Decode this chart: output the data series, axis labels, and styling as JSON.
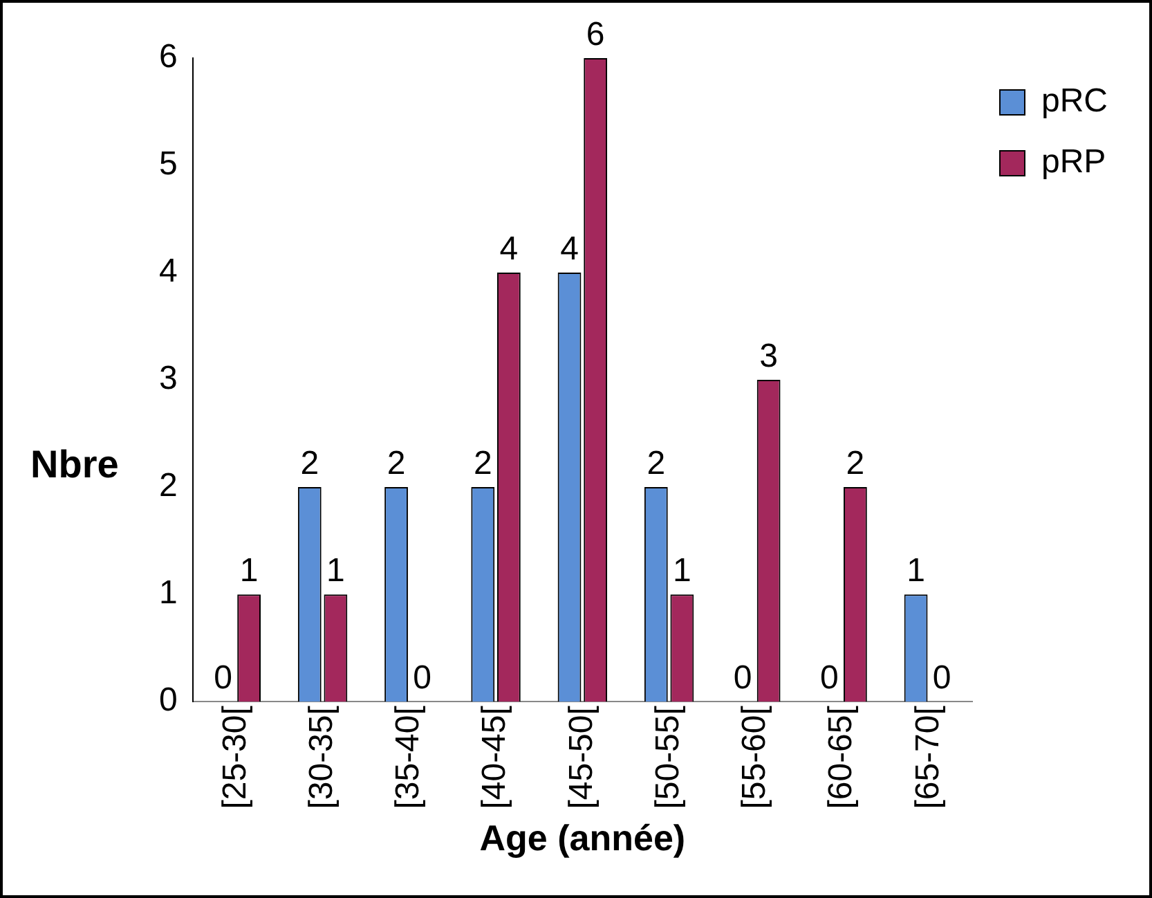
{
  "chart_data": {
    "type": "bar",
    "xlabel": "Age (année)",
    "ylabel": "Nbre",
    "categories": [
      "[25-30[",
      "[30-35[",
      "[35-40[",
      "[40-45[",
      "[45-50[",
      "[50-55[",
      "[55-60[",
      "[60-65[",
      "[65-70["
    ],
    "series": [
      {
        "name": "pRC",
        "color": "#5b8fd6",
        "values": [
          0,
          2,
          2,
          2,
          4,
          2,
          0,
          0,
          1
        ]
      },
      {
        "name": "pRP",
        "color": "#a3285c",
        "values": [
          1,
          1,
          0,
          4,
          6,
          1,
          3,
          2,
          0
        ]
      }
    ],
    "ylim": [
      0,
      6
    ],
    "yticks": [
      0,
      1,
      2,
      3,
      4,
      5,
      6
    ],
    "grid": false,
    "legend": "top right",
    "data_labels": true
  }
}
